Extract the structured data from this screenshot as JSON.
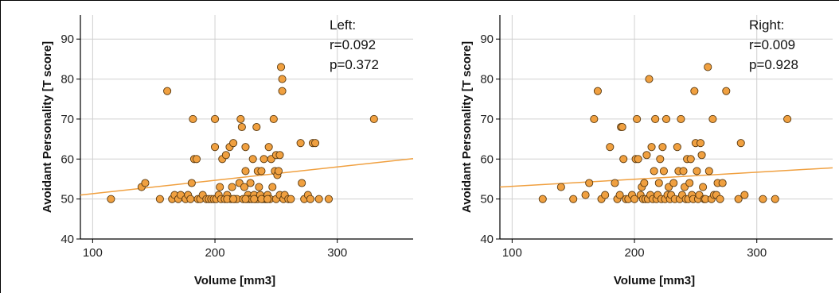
{
  "colors": {
    "point_fill": "#F0A040",
    "point_stroke": "#5a3a10",
    "fit_line": "#F0A040",
    "grid": "#d0d0d0",
    "axis": "#000000"
  },
  "chart_data": [
    {
      "type": "scatter",
      "xlabel": "Volume [mm3]",
      "ylabel": "Avoidant Personality [T score]",
      "xlim": [
        90,
        362
      ],
      "ylim": [
        40,
        96
      ],
      "xticks": [
        100,
        200,
        300
      ],
      "yticks": [
        40,
        50,
        60,
        70,
        80,
        90
      ],
      "grid": true,
      "annotation": [
        "Left:",
        "r=0.092",
        "p=0.372"
      ],
      "fit_line": {
        "x": [
          90,
          362
        ],
        "y": [
          51.0,
          60.1
        ]
      },
      "points": [
        [
          115,
          50
        ],
        [
          140,
          53
        ],
        [
          143,
          54
        ],
        [
          155,
          50
        ],
        [
          161,
          77
        ],
        [
          165,
          50
        ],
        [
          167,
          51
        ],
        [
          170,
          50
        ],
        [
          172,
          51
        ],
        [
          176,
          50
        ],
        [
          178,
          51
        ],
        [
          180,
          50
        ],
        [
          181,
          54
        ],
        [
          182,
          70
        ],
        [
          183,
          60
        ],
        [
          185,
          60
        ],
        [
          186,
          50
        ],
        [
          188,
          50
        ],
        [
          190,
          51
        ],
        [
          193,
          50
        ],
        [
          195,
          50
        ],
        [
          197,
          50
        ],
        [
          199,
          50
        ],
        [
          200,
          70
        ],
        [
          200,
          63
        ],
        [
          201,
          50
        ],
        [
          203,
          51
        ],
        [
          204,
          53
        ],
        [
          205,
          50
        ],
        [
          206,
          60
        ],
        [
          208,
          50
        ],
        [
          209,
          61
        ],
        [
          210,
          51
        ],
        [
          212,
          63
        ],
        [
          213,
          50
        ],
        [
          214,
          53
        ],
        [
          215,
          64
        ],
        [
          216,
          50
        ],
        [
          218,
          50
        ],
        [
          220,
          54
        ],
        [
          221,
          70
        ],
        [
          222,
          68
        ],
        [
          223,
          50
        ],
        [
          224,
          53
        ],
        [
          225,
          63
        ],
        [
          225,
          57
        ],
        [
          226,
          50
        ],
        [
          227,
          51
        ],
        [
          228,
          50
        ],
        [
          229,
          54
        ],
        [
          230,
          50
        ],
        [
          231,
          60
        ],
        [
          232,
          51
        ],
        [
          233,
          50
        ],
        [
          234,
          68
        ],
        [
          235,
          57
        ],
        [
          235,
          50
        ],
        [
          236,
          53
        ],
        [
          237,
          51
        ],
        [
          238,
          57
        ],
        [
          239,
          50
        ],
        [
          240,
          60
        ],
        [
          241,
          50
        ],
        [
          242,
          50
        ],
        [
          243,
          51
        ],
        [
          244,
          63
        ],
        [
          245,
          50
        ],
        [
          246,
          60
        ],
        [
          247,
          53
        ],
        [
          248,
          70
        ],
        [
          249,
          57
        ],
        [
          250,
          61
        ],
        [
          250,
          50
        ],
        [
          251,
          56
        ],
        [
          252,
          57
        ],
        [
          253,
          51
        ],
        [
          253,
          61
        ],
        [
          254,
          83
        ],
        [
          255,
          80
        ],
        [
          255,
          77
        ],
        [
          256,
          50
        ],
        [
          257,
          51
        ],
        [
          260,
          50
        ],
        [
          270,
          64
        ],
        [
          271,
          54
        ],
        [
          273,
          50
        ],
        [
          276,
          51
        ],
        [
          278,
          50
        ],
        [
          280,
          64
        ],
        [
          282,
          64
        ],
        [
          285,
          50
        ],
        [
          293,
          50
        ],
        [
          330,
          70
        ],
        [
          210,
          50
        ],
        [
          215,
          50
        ],
        [
          225,
          50
        ],
        [
          232,
          50
        ],
        [
          238,
          50
        ],
        [
          243,
          50
        ],
        [
          262,
          50
        ]
      ]
    },
    {
      "type": "scatter",
      "xlabel": "Volume [mm3]",
      "ylabel": "Avoidant Personality [T score]",
      "xlim": [
        90,
        362
      ],
      "ylim": [
        40,
        96
      ],
      "xticks": [
        100,
        200,
        300
      ],
      "yticks": [
        40,
        50,
        60,
        70,
        80,
        90
      ],
      "grid": true,
      "annotation": [
        "Right:",
        "r=0.009",
        "p=0.928"
      ],
      "fit_line": {
        "x": [
          90,
          362
        ],
        "y": [
          53.0,
          57.8
        ]
      },
      "points": [
        [
          125,
          50
        ],
        [
          140,
          53
        ],
        [
          150,
          50
        ],
        [
          160,
          51
        ],
        [
          163,
          54
        ],
        [
          167,
          70
        ],
        [
          170,
          77
        ],
        [
          173,
          50
        ],
        [
          176,
          51
        ],
        [
          180,
          63
        ],
        [
          184,
          54
        ],
        [
          186,
          50
        ],
        [
          188,
          51
        ],
        [
          189,
          68
        ],
        [
          190,
          68
        ],
        [
          191,
          60
        ],
        [
          193,
          50
        ],
        [
          195,
          50
        ],
        [
          198,
          51
        ],
        [
          200,
          50
        ],
        [
          201,
          60
        ],
        [
          202,
          70
        ],
        [
          203,
          60
        ],
        [
          205,
          51
        ],
        [
          206,
          53
        ],
        [
          207,
          50
        ],
        [
          208,
          54
        ],
        [
          209,
          50
        ],
        [
          210,
          61
        ],
        [
          211,
          50
        ],
        [
          212,
          80
        ],
        [
          213,
          51
        ],
        [
          214,
          63
        ],
        [
          215,
          50
        ],
        [
          216,
          57
        ],
        [
          217,
          70
        ],
        [
          218,
          50
        ],
        [
          219,
          51
        ],
        [
          220,
          54
        ],
        [
          221,
          60
        ],
        [
          222,
          50
        ],
        [
          223,
          63
        ],
        [
          224,
          57
        ],
        [
          225,
          50
        ],
        [
          226,
          70
        ],
        [
          227,
          51
        ],
        [
          228,
          53
        ],
        [
          229,
          50
        ],
        [
          230,
          51
        ],
        [
          232,
          54
        ],
        [
          233,
          50
        ],
        [
          235,
          63
        ],
        [
          236,
          57
        ],
        [
          237,
          50
        ],
        [
          238,
          70
        ],
        [
          239,
          51
        ],
        [
          240,
          57
        ],
        [
          241,
          53
        ],
        [
          242,
          50
        ],
        [
          243,
          60
        ],
        [
          244,
          50
        ],
        [
          245,
          54
        ],
        [
          246,
          60
        ],
        [
          247,
          51
        ],
        [
          248,
          50
        ],
        [
          249,
          77
        ],
        [
          250,
          64
        ],
        [
          251,
          57
        ],
        [
          252,
          50
        ],
        [
          253,
          51
        ],
        [
          254,
          64
        ],
        [
          255,
          61
        ],
        [
          256,
          53
        ],
        [
          257,
          50
        ],
        [
          258,
          50
        ],
        [
          260,
          83
        ],
        [
          261,
          57
        ],
        [
          263,
          50
        ],
        [
          264,
          70
        ],
        [
          265,
          51
        ],
        [
          267,
          51
        ],
        [
          268,
          54
        ],
        [
          270,
          50
        ],
        [
          272,
          54
        ],
        [
          275,
          77
        ],
        [
          285,
          50
        ],
        [
          287,
          64
        ],
        [
          290,
          51
        ],
        [
          305,
          50
        ],
        [
          315,
          50
        ],
        [
          325,
          70
        ]
      ]
    }
  ]
}
